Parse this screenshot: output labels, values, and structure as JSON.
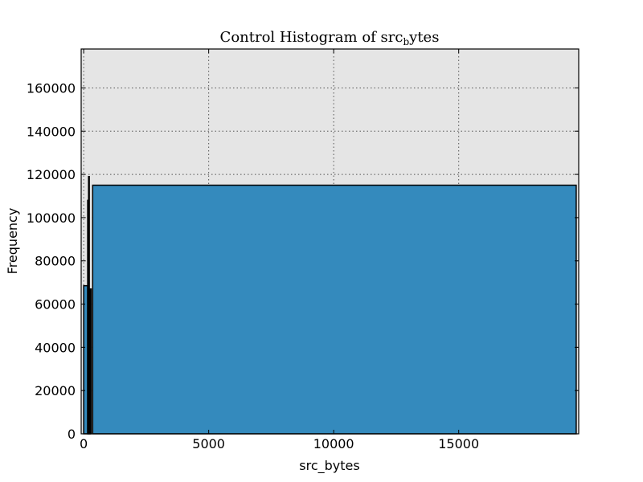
{
  "chart_data": {
    "type": "bar",
    "title": {
      "prefix": "Control Histogram of src",
      "subscript": "b",
      "suffix": "ytes"
    },
    "xlabel": "src_bytes",
    "ylabel": "Frequency",
    "xlim": [
      -100,
      19800
    ],
    "ylim": [
      0,
      178000
    ],
    "xticks": [
      0,
      5000,
      10000,
      15000
    ],
    "yticks": [
      0,
      20000,
      40000,
      60000,
      80000,
      100000,
      120000,
      140000,
      160000
    ],
    "grid": true,
    "colors": {
      "plot_background": "#e5e5e5",
      "bar_fill": "#348abd",
      "bar_edge": "#000000",
      "grid": "#555555"
    },
    "bars": [
      {
        "x0": 0,
        "x1": 160,
        "value": 68500
      },
      {
        "x0": 160,
        "x1": 195,
        "value": 108000
      },
      {
        "x0": 195,
        "x1": 225,
        "value": 119000
      },
      {
        "x0": 225,
        "x1": 260,
        "value": 54000
      },
      {
        "x0": 260,
        "x1": 300,
        "value": 67000
      },
      {
        "x0": 300,
        "x1": 360,
        "value": 0
      },
      {
        "x0": 360,
        "x1": 19700,
        "value": 115000
      }
    ]
  }
}
